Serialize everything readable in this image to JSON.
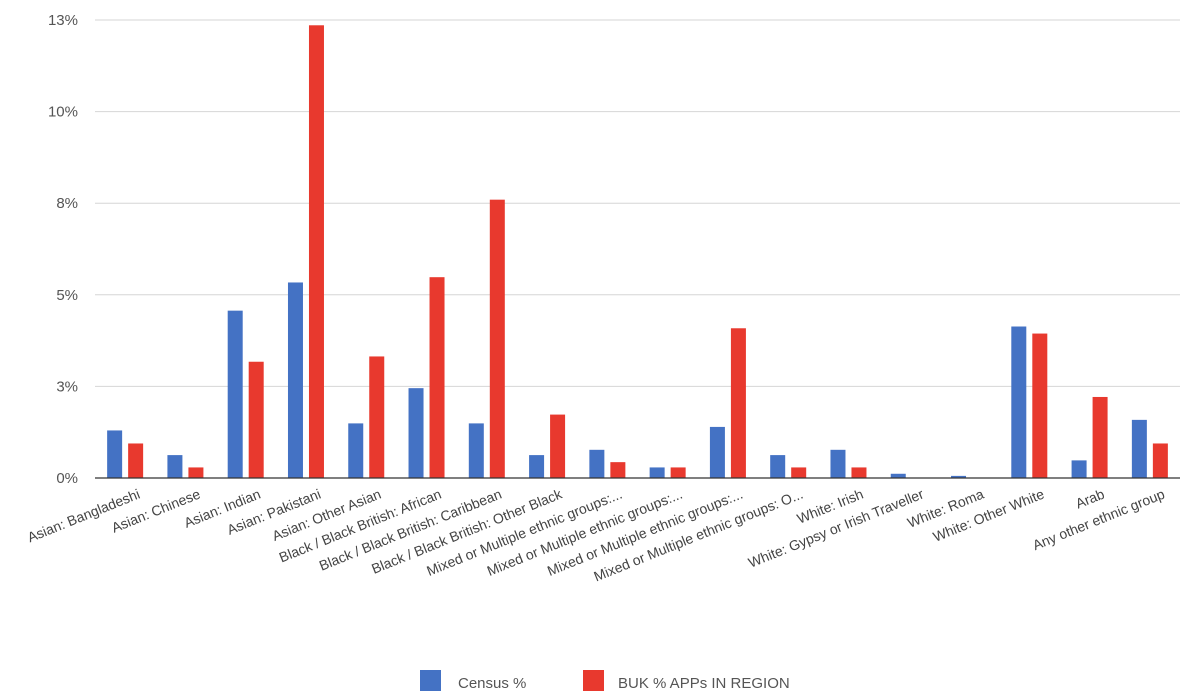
{
  "chart_data": {
    "type": "bar",
    "title": "",
    "xlabel": "",
    "ylabel": "",
    "ylim": [
      0,
      13
    ],
    "y_ticks": [
      0,
      2.6,
      5.2,
      7.8,
      10.4,
      13
    ],
    "y_tick_labels": [
      "0%",
      "3%",
      "5%",
      "8%",
      "10%",
      "13%"
    ],
    "grid": true,
    "legend_position": "bottom",
    "categories": [
      "Asian: Bangladeshi",
      "Asian: Chinese",
      "Asian: Indian",
      "Asian: Pakistani",
      "Asian: Other Asian",
      "Black / Black British: African",
      "Black / Black British: Caribbean",
      "Black / Black British: Other Black",
      "Mixed or Multiple ethnic groups:...",
      "Mixed or Multiple ethnic groups:...",
      "Mixed or Multiple ethnic groups:...",
      "Mixed or Multiple ethnic groups: O...",
      "White: Irish",
      "White: Gypsy or Irish Traveller",
      "White: Roma",
      "White: Other White",
      "Arab",
      "Any other ethnic group"
    ],
    "series": [
      {
        "name": "Census %",
        "color": "#4472c4",
        "values": [
          1.35,
          0.65,
          4.75,
          5.55,
          1.55,
          2.55,
          1.55,
          0.65,
          0.8,
          0.3,
          1.45,
          0.65,
          0.8,
          0.12,
          0.06,
          4.3,
          0.5,
          1.65
        ]
      },
      {
        "name": "BUK % APPs IN REGION",
        "color": "#e8392e",
        "values": [
          0.98,
          0.3,
          3.3,
          12.85,
          3.45,
          5.7,
          7.9,
          1.8,
          0.45,
          0.3,
          4.25,
          0.3,
          0.3,
          0.0,
          0.0,
          4.1,
          2.3,
          0.98
        ]
      }
    ]
  }
}
